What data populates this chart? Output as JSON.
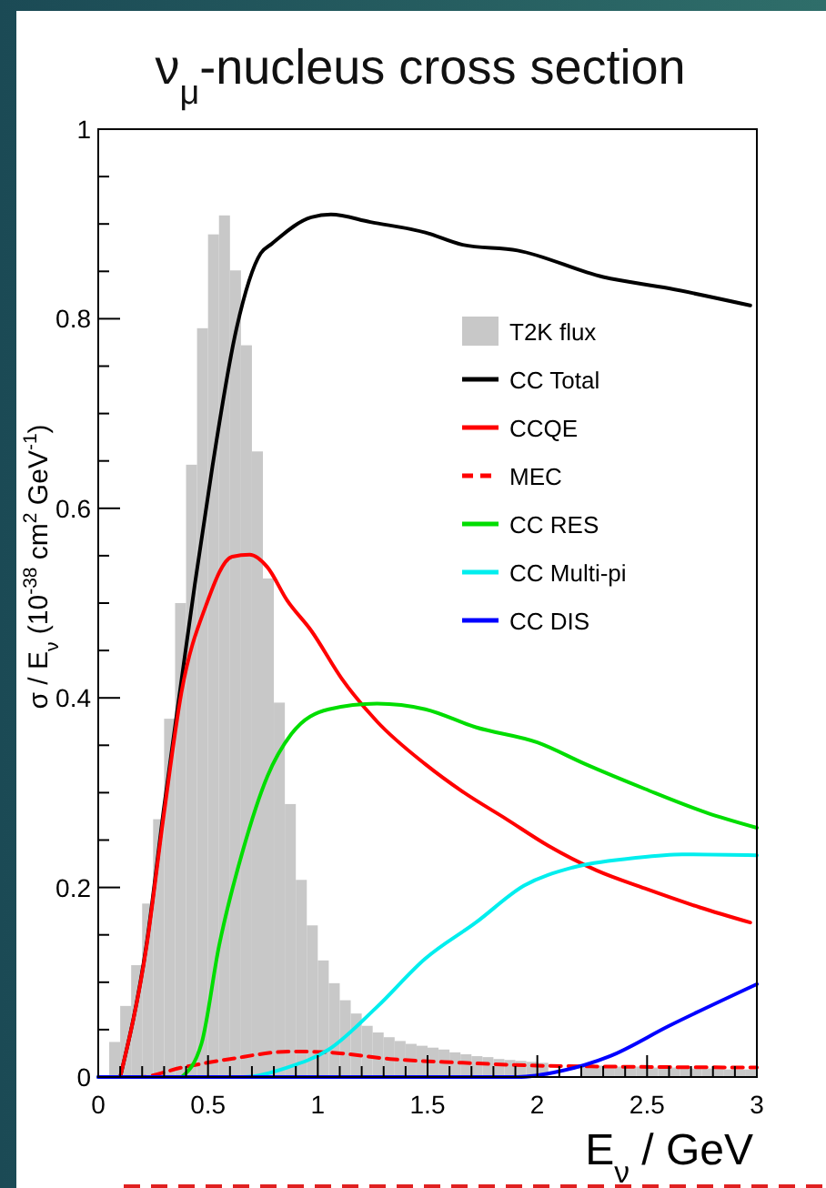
{
  "chart_data": {
    "type": "line",
    "title": "ν$_{μ}$-nucleus cross section",
    "xlabel": "E$_{ν}$ / GeV",
    "ylabel": "σ / E$_{ν}$ (10$^{-38}$ cm$^{2}$ GeV$^{-1}$)",
    "xlim": [
      0,
      3
    ],
    "ylim": [
      0,
      1
    ],
    "xticks": [
      0,
      {
        "value": 0.1,
        "label": null
      },
      {
        "value": 0.2,
        "label": null
      },
      {
        "value": 0.3,
        "label": null
      },
      {
        "value": 0.4,
        "label": null
      },
      0.5,
      {
        "value": 0.6,
        "label": null
      },
      {
        "value": 0.7,
        "label": null
      },
      {
        "value": 0.8,
        "label": null
      },
      {
        "value": 0.9,
        "label": null
      },
      1,
      {
        "value": 1.1,
        "label": null
      },
      {
        "value": 1.2,
        "label": null
      },
      {
        "value": 1.3,
        "label": null
      },
      {
        "value": 1.4,
        "label": null
      },
      1.5,
      {
        "value": 1.6,
        "label": null
      },
      {
        "value": 1.7,
        "label": null
      },
      {
        "value": 1.8,
        "label": null
      },
      {
        "value": 1.9,
        "label": null
      },
      2,
      {
        "value": 2.1,
        "label": null
      },
      {
        "value": 2.2,
        "label": null
      },
      {
        "value": 2.3,
        "label": null
      },
      {
        "value": 2.4,
        "label": null
      },
      2.5,
      {
        "value": 2.6,
        "label": null
      },
      {
        "value": 2.7,
        "label": null
      },
      {
        "value": 2.8,
        "label": null
      },
      {
        "value": 2.9,
        "label": null
      },
      3
    ],
    "yticks": [
      0,
      {
        "value": 0.05,
        "label": null
      },
      {
        "value": 0.1,
        "label": null
      },
      {
        "value": 0.15,
        "label": null
      },
      0.2,
      {
        "value": 0.25,
        "label": null
      },
      {
        "value": 0.3,
        "label": null
      },
      {
        "value": 0.35,
        "label": null
      },
      0.4,
      {
        "value": 0.45,
        "label": null
      },
      {
        "value": 0.5,
        "label": null
      },
      {
        "value": 0.55,
        "label": null
      },
      0.6,
      {
        "value": 0.65,
        "label": null
      },
      {
        "value": 0.7,
        "label": null
      },
      {
        "value": 0.75,
        "label": null
      },
      0.8,
      {
        "value": 0.85,
        "label": null
      },
      {
        "value": 0.9,
        "label": null
      },
      {
        "value": 0.95,
        "label": null
      },
      1
    ],
    "legend": "right",
    "series": [
      {
        "name": "T2K flux",
        "type": "histogram",
        "color": "#c8c8c8",
        "bins": [
          0,
          0.05,
          0.1,
          0.15,
          0.2,
          0.25,
          0.3,
          0.35,
          0.4,
          0.45,
          0.5,
          0.55,
          0.6,
          0.65,
          0.7,
          0.75,
          0.8,
          0.85,
          0.9,
          0.95,
          1,
          1.05,
          1.1,
          1.15,
          1.2,
          1.25,
          1.3,
          1.35,
          1.4,
          1.45,
          1.5,
          1.55,
          1.6,
          1.65,
          1.7,
          1.75,
          1.8,
          1.85,
          1.9,
          1.95,
          2,
          2.05,
          2.1,
          2.15,
          2.2,
          2.25,
          2.3,
          2.35,
          2.4,
          2.45,
          2.5,
          2.55,
          2.6,
          2.65,
          2.7,
          2.75,
          2.8,
          2.85,
          2.9,
          2.95,
          3
        ],
        "values": [
          null,
          0.037,
          0.075,
          0.118,
          0.183,
          0.272,
          0.378,
          0.5,
          0.646,
          0.79,
          0.889,
          0.909,
          0.851,
          0.772,
          0.66,
          0.526,
          0.395,
          0.288,
          0.208,
          0.16,
          0.123,
          0.099,
          0.081,
          0.067,
          0.054,
          0.047,
          0.042,
          0.038,
          0.035,
          0.033,
          0.031,
          0.029,
          0.026,
          0.024,
          0.022,
          0.021,
          0.019,
          0.018,
          0.017,
          0.016,
          0.015,
          null,
          null,
          null,
          0.013,
          0.012,
          0.012,
          0.011,
          0.011,
          0.011,
          0.01,
          0.01,
          0.01,
          0.009,
          0.009,
          0.009,
          0.009,
          0.008,
          0.008,
          0.008
        ]
      },
      {
        "name": "CC Total",
        "color": "#000000",
        "x": [
          0.1,
          0.22,
          0.3,
          0.38,
          0.44,
          0.52,
          0.63,
          0.74,
          0.79,
          0.97,
          1.06,
          1.24,
          1.49,
          1.66,
          1.91,
          2.3,
          2.6,
          2.97
        ],
        "values": [
          0,
          0.14,
          0.285,
          0.42,
          0.52,
          0.644,
          0.79,
          0.869,
          0.879,
          0.907,
          0.91,
          0.902,
          0.891,
          0.878,
          0.872,
          0.844,
          0.832,
          0.814
        ]
      },
      {
        "name": "CCQE",
        "color": "#ff0000",
        "x": [
          0.1,
          0.22,
          0.3,
          0.38,
          0.49,
          0.61,
          0.69,
          0.77,
          0.86,
          0.97,
          1.11,
          1.27,
          1.49,
          1.66,
          1.86,
          2.05,
          2.27,
          2.49,
          2.74,
          2.97
        ],
        "values": [
          0,
          0.138,
          0.279,
          0.407,
          0.497,
          0.549,
          0.551,
          0.538,
          0.503,
          0.471,
          0.42,
          0.375,
          0.33,
          0.301,
          0.272,
          0.244,
          0.218,
          0.199,
          0.179,
          0.163
        ]
      },
      {
        "name": "MEC",
        "color": "#ff0000",
        "line_style": "dashed",
        "x": [
          0,
          0.19,
          0.38,
          0.6,
          0.88,
          1.05,
          1.33,
          1.66,
          2,
          2.33,
          3
        ],
        "values": [
          0,
          0,
          0.01,
          0.019,
          0.027,
          0.026,
          0.019,
          0.015,
          0.012,
          0.011,
          0.01
        ]
      },
      {
        "name": "CC RES",
        "color": "#00dd00",
        "x": [
          0.38,
          0.47,
          0.55,
          0.66,
          0.77,
          0.88,
          1.05,
          1.27,
          1.49,
          1.72,
          2,
          2.22,
          2.49,
          2.77,
          3
        ],
        "values": [
          0,
          0.035,
          0.138,
          0.24,
          0.317,
          0.362,
          0.388,
          0.394,
          0.388,
          0.369,
          0.353,
          0.33,
          0.304,
          0.279,
          0.263
        ]
      },
      {
        "name": "CC Multi-pi",
        "color": "#00eeee",
        "x": [
          0,
          0.66,
          0.86,
          1.05,
          1.27,
          1.49,
          1.72,
          1.94,
          2.16,
          2.44,
          2.66,
          3
        ],
        "values": [
          0,
          0,
          0.01,
          0.029,
          0.074,
          0.125,
          0.163,
          0.202,
          0.221,
          0.231,
          0.235,
          0.234
        ]
      },
      {
        "name": "CC DIS",
        "color": "#0000ff",
        "x": [
          0,
          1.91,
          2.1,
          2.33,
          2.6,
          3
        ],
        "values": [
          0,
          0,
          0.006,
          0.022,
          0.054,
          0.098
        ]
      }
    ]
  }
}
